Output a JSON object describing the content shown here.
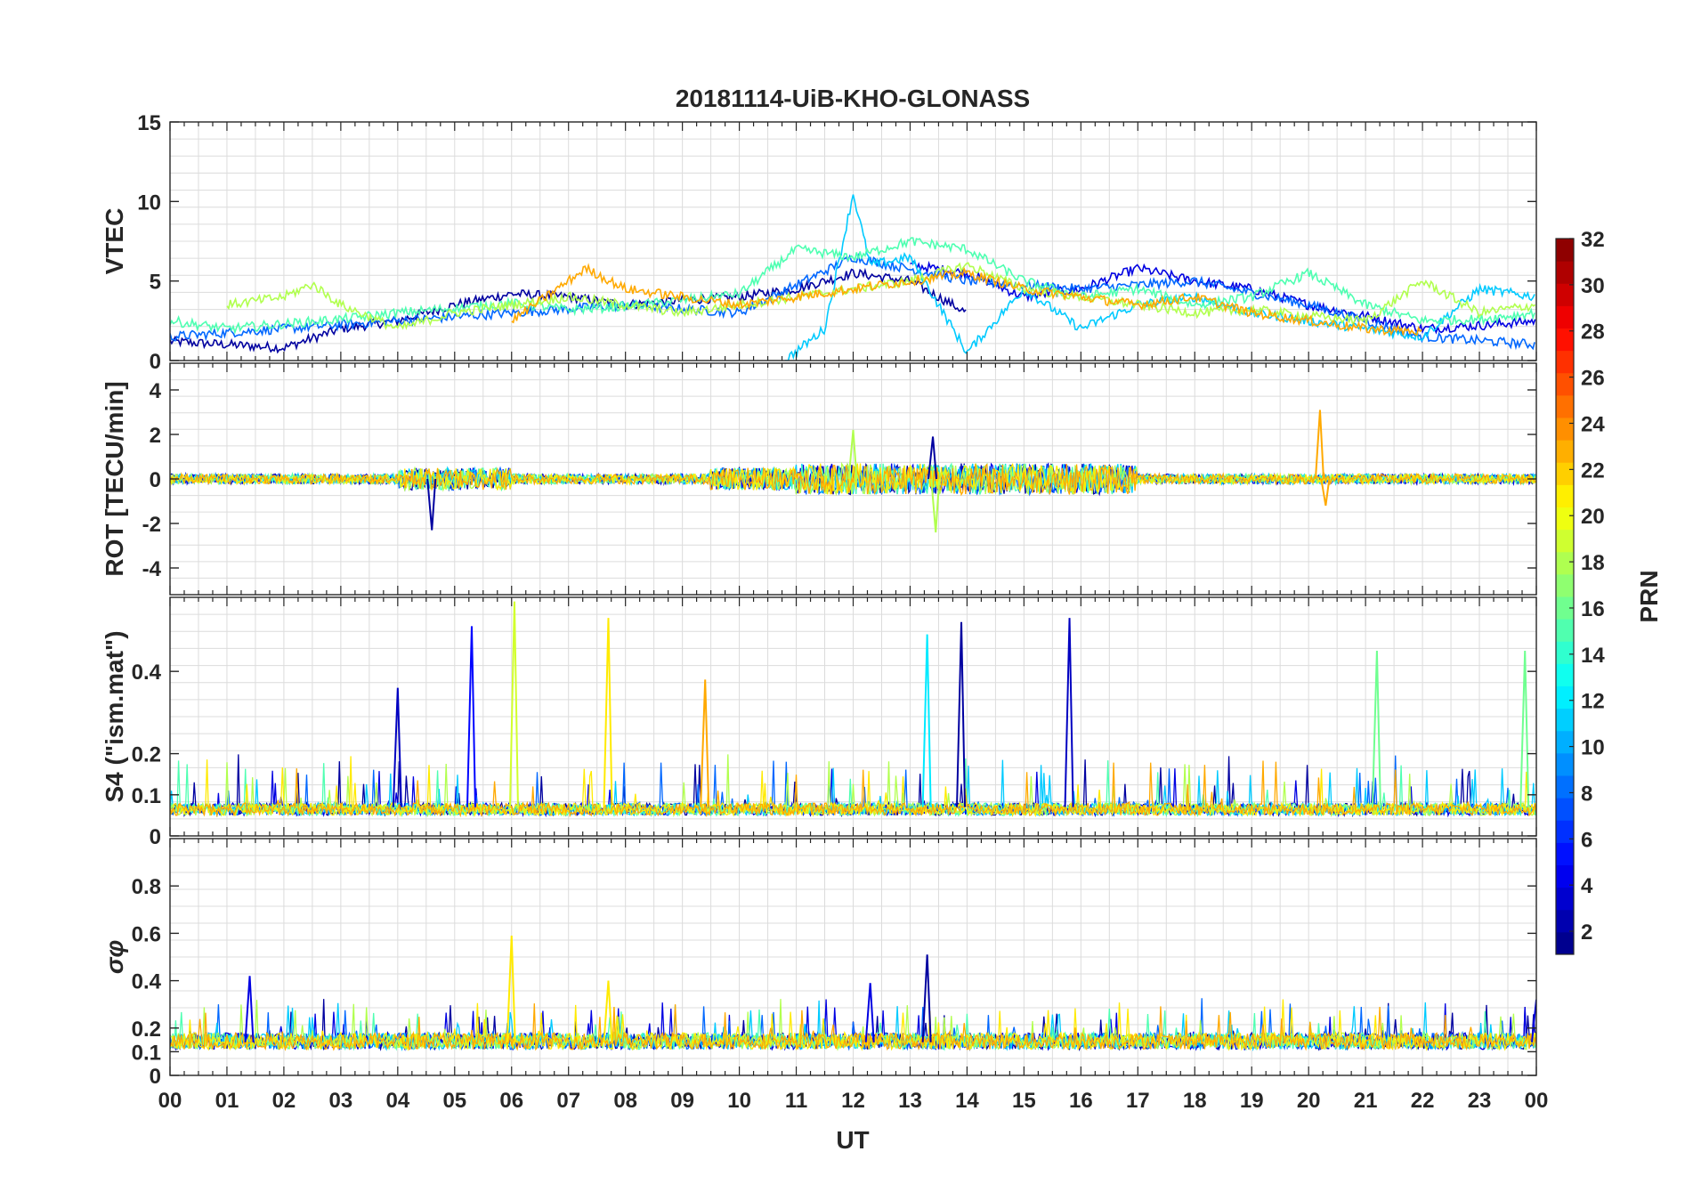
{
  "chart_data": {
    "type": "line",
    "title": "20181114-UiB-KHO-GLONASS",
    "xlabel": "UT",
    "x_tick_labels": [
      "00",
      "01",
      "02",
      "03",
      "04",
      "05",
      "06",
      "07",
      "08",
      "09",
      "10",
      "11",
      "12",
      "13",
      "14",
      "15",
      "16",
      "17",
      "18",
      "19",
      "20",
      "21",
      "22",
      "23",
      "00"
    ],
    "xlim_hours": [
      0,
      24
    ],
    "colorbar": {
      "label": "PRN",
      "range": [
        1,
        32
      ],
      "ticks": [
        "2",
        "4",
        "6",
        "8",
        "10",
        "12",
        "14",
        "16",
        "18",
        "20",
        "22",
        "24",
        "26",
        "28",
        "30",
        "32"
      ],
      "colormap": "jet"
    },
    "panels": [
      {
        "name": "vtec",
        "ylabel": "VTEC",
        "ylim": [
          0,
          15
        ],
        "yticks": [
          0,
          5,
          10,
          15
        ],
        "ytick_labels": [
          "0",
          "5",
          "10",
          "15"
        ],
        "series": [
          {
            "prn": 2,
            "hours": [
              0,
              1,
              2,
              3,
              4,
              5,
              6,
              7,
              8,
              9,
              10,
              11,
              12,
              13,
              14
            ],
            "values": [
              1.2,
              1.0,
              0.8,
              2.0,
              2.5,
              3.5,
              4.2,
              4.0,
              3.5,
              3.8,
              4.0,
              4.5,
              5.5,
              5.0,
              3.0
            ]
          },
          {
            "prn": 4,
            "hours": [
              13,
              14,
              15,
              16,
              17,
              18,
              19,
              20,
              21,
              22,
              23,
              24
            ],
            "values": [
              6.0,
              5.5,
              4.0,
              4.5,
              5.8,
              5.0,
              4.5,
              3.5,
              2.8,
              2.0,
              2.2,
              2.5
            ]
          },
          {
            "prn": 8,
            "hours": [
              0,
              2,
              4,
              6,
              8,
              10,
              12,
              14,
              16,
              18,
              20,
              22,
              24
            ],
            "values": [
              1.5,
              2.0,
              2.5,
              3.0,
              3.5,
              3.0,
              6.5,
              5.0,
              4.5,
              5.0,
              3.5,
              1.5,
              1.0
            ]
          },
          {
            "prn": 11,
            "hours": [
              10.8,
              11.5,
              12,
              12.3,
              13,
              14,
              15,
              16,
              17,
              18,
              19,
              20,
              21,
              22,
              23,
              24
            ],
            "values": [
              0.0,
              2.0,
              10.5,
              6.0,
              6.5,
              0.5,
              4.5,
              2.0,
              3.5,
              4.0,
              3.0,
              2.5,
              2.0,
              1.5,
              4.5,
              4.0
            ]
          },
          {
            "prn": 15,
            "hours": [
              0,
              1,
              2,
              3,
              4,
              5,
              6,
              7,
              8,
              9,
              10,
              11,
              12,
              13,
              14,
              15,
              16,
              17,
              18,
              19,
              20,
              21,
              22,
              23,
              24
            ],
            "values": [
              2.5,
              2.0,
              2.3,
              2.6,
              3.0,
              3.3,
              3.6,
              3.2,
              3.4,
              3.8,
              4.2,
              7.0,
              6.5,
              7.5,
              7.0,
              5.0,
              4.0,
              4.5,
              3.5,
              4.0,
              5.5,
              3.5,
              2.5,
              2.6,
              3.0
            ]
          },
          {
            "prn": 18,
            "hours": [
              1,
              2,
              2.5,
              3,
              4,
              5,
              6,
              7,
              8,
              9,
              10,
              11,
              12,
              13,
              14,
              15,
              16,
              17,
              18,
              19,
              20,
              21,
              22,
              23,
              24
            ],
            "values": [
              3.5,
              4.0,
              4.8,
              3.5,
              2.0,
              3.0,
              3.5,
              4.0,
              3.5,
              3.0,
              3.5,
              4.0,
              4.5,
              5.0,
              6.0,
              4.5,
              4.0,
              3.5,
              3.0,
              3.2,
              2.8,
              2.5,
              5.0,
              3.0,
              3.5
            ]
          },
          {
            "prn": 23,
            "hours": [
              6,
              7,
              7.3,
              8,
              9,
              10,
              11,
              12,
              13,
              14,
              15,
              16,
              17,
              18,
              19,
              20,
              21,
              22
            ],
            "values": [
              2.5,
              5.0,
              5.8,
              4.5,
              4.0,
              3.5,
              4.0,
              4.5,
              5.0,
              5.5,
              4.5,
              4.0,
              3.5,
              4.0,
              3.0,
              2.5,
              2.0,
              1.8
            ]
          }
        ]
      },
      {
        "name": "rot",
        "ylabel": "ROT [TECU/min]",
        "ylim": [
          -5.2,
          5.2
        ],
        "yticks": [
          -4,
          -2,
          0,
          2,
          4
        ],
        "ytick_labels": [
          "-4",
          "-2",
          "0",
          "2",
          "4"
        ],
        "spikes": [
          {
            "prn": 2,
            "hour": 4.6,
            "value": -2.3
          },
          {
            "prn": 2,
            "hour": 13.4,
            "value": 1.9
          },
          {
            "prn": 18,
            "hour": 12.0,
            "value": 2.2
          },
          {
            "prn": 18,
            "hour": 13.45,
            "value": -2.4
          },
          {
            "prn": 23,
            "hour": 20.2,
            "value": 3.1
          },
          {
            "prn": 23,
            "hour": 20.3,
            "value": -1.2
          }
        ]
      },
      {
        "name": "s4",
        "ylabel": "S4 (\"ism.mat\")",
        "ylim": [
          0,
          0.58
        ],
        "yticks": [
          0,
          0.1,
          0.2,
          0.4
        ],
        "ytick_labels": [
          "0",
          "0.1",
          "0.2",
          "0.4"
        ],
        "spikes": [
          {
            "prn": 3,
            "hour": 4.0,
            "value": 0.36
          },
          {
            "prn": 5,
            "hour": 5.3,
            "value": 0.51
          },
          {
            "prn": 19,
            "hour": 6.05,
            "value": 0.57
          },
          {
            "prn": 21,
            "hour": 7.7,
            "value": 0.53
          },
          {
            "prn": 23,
            "hour": 9.4,
            "value": 0.38
          },
          {
            "prn": 12,
            "hour": 13.3,
            "value": 0.49
          },
          {
            "prn": 2,
            "hour": 13.9,
            "value": 0.52
          },
          {
            "prn": 3,
            "hour": 15.8,
            "value": 0.53
          },
          {
            "prn": 16,
            "hour": 21.2,
            "value": 0.45
          },
          {
            "prn": 16,
            "hour": 23.8,
            "value": 0.45
          }
        ]
      },
      {
        "name": "sigma-phi",
        "ylabel": "σφ",
        "ylim": [
          0,
          1.0
        ],
        "yticks": [
          0,
          0.1,
          0.2,
          0.4,
          0.6,
          0.8
        ],
        "ytick_labels": [
          "0",
          "0.1",
          "0.2",
          "0.4",
          "0.6",
          "0.8"
        ],
        "spikes": [
          {
            "prn": 4,
            "hour": 1.4,
            "value": 0.42
          },
          {
            "prn": 21,
            "hour": 6.0,
            "value": 0.59
          },
          {
            "prn": 21,
            "hour": 7.7,
            "value": 0.4
          },
          {
            "prn": 2,
            "hour": 13.3,
            "value": 0.51
          },
          {
            "prn": 4,
            "hour": 12.3,
            "value": 0.39
          },
          {
            "prn": 4,
            "hour": 24.0,
            "value": 0.32
          }
        ]
      }
    ]
  },
  "colors": {
    "axis": "#262626",
    "grid": "#dcdcdc"
  }
}
